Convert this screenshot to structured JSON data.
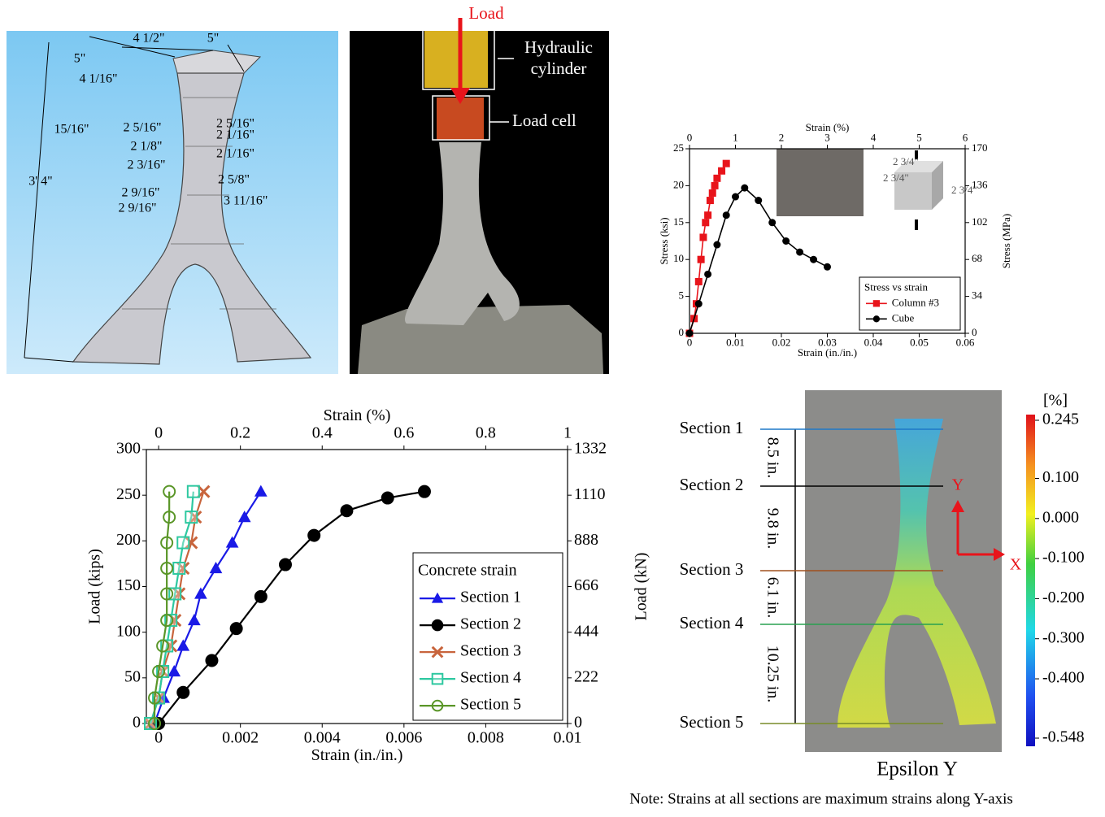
{
  "drawing": {
    "dimensions": [
      "4 1/2\"",
      "5\"",
      "5\"",
      "4 1/16\"",
      "15/16\"",
      "2 5/16\"",
      "2 5/16\"",
      "2 1/16\"",
      "2 1/8\"",
      "2 1/16\"",
      "2 3/16\"",
      "2 5/8\"",
      "2 9/16\"",
      "2 9/16\"",
      "3 11/16\"",
      "3' 4\""
    ]
  },
  "photo": {
    "load": "Load",
    "hydraulic_cylinder": "Hydraulic cylinder",
    "load_cell": "Load cell"
  },
  "chart_data": [
    {
      "type": "line",
      "x_label": "Strain (in./in.)",
      "x2_label": "Strain (%)",
      "y_label": "Stress (ksi)",
      "y2_label": "Stress (MPa)",
      "xlim": [
        0,
        0.06
      ],
      "xticks": [
        0,
        0.01,
        0.02,
        0.03,
        0.04,
        0.05,
        0.06
      ],
      "x2lim": [
        0,
        6
      ],
      "x2ticks": [
        0,
        1,
        2,
        3,
        4,
        5,
        6
      ],
      "ylim": [
        0,
        25
      ],
      "yticks": [
        0,
        5,
        10,
        15,
        20,
        25
      ],
      "y2lim": [
        0,
        170
      ],
      "y2ticks": [
        0,
        34,
        68,
        102,
        136,
        170
      ],
      "legend": "lower right",
      "legend_title": "Stress vs strain",
      "annotations": [
        "2 3/4\"",
        "2 3/4\"",
        "2 3/4\""
      ],
      "series": [
        {
          "name": "Column #3",
          "color": "#e8141b",
          "marker": "square",
          "marker_filled": true,
          "x": [
            0,
            0.001,
            0.0015,
            0.002,
            0.0025,
            0.003,
            0.0035,
            0.004,
            0.0045,
            0.005,
            0.0055,
            0.006,
            0.007,
            0.008
          ],
          "values": [
            0,
            2,
            4,
            7,
            10,
            13,
            15,
            16,
            18,
            19,
            20,
            21,
            22,
            23
          ]
        },
        {
          "name": "Cube",
          "color": "#000000",
          "marker": "circle",
          "marker_filled": true,
          "x": [
            0,
            0.002,
            0.004,
            0.006,
            0.008,
            0.01,
            0.012,
            0.015,
            0.018,
            0.021,
            0.024,
            0.027,
            0.03
          ],
          "values": [
            0,
            4,
            8,
            12,
            16,
            18.5,
            19.7,
            18,
            15,
            12.5,
            11,
            10,
            9
          ]
        }
      ]
    },
    {
      "type": "line",
      "x_label": "Strain (in./in.)",
      "x2_label": "Strain (%)",
      "y_label": "Load (kips)",
      "y2_label": "Load (kN)",
      "xlim": [
        -0.0003,
        0.01
      ],
      "xticks": [
        0,
        0.002,
        0.004,
        0.006,
        0.008,
        0.01
      ],
      "x2lim": [
        -0.03,
        1
      ],
      "x2ticks": [
        0,
        0.2,
        0.4,
        0.6,
        0.8,
        1
      ],
      "ylim": [
        0,
        300
      ],
      "yticks": [
        0,
        50,
        100,
        150,
        200,
        250,
        300
      ],
      "y2lim": [
        0,
        1332
      ],
      "y2ticks": [
        0,
        222,
        444,
        666,
        888,
        1110,
        1332
      ],
      "legend": "lower right",
      "legend_title": "Concrete strain",
      "series": [
        {
          "name": "Section 1",
          "color": "#1a1ae6",
          "marker": "triangle",
          "marker_filled": true,
          "x": [
            -0.0001,
            0.00012,
            0.00038,
            0.0006,
            0.00087,
            0.00103,
            0.0014,
            0.0018,
            0.0021,
            0.0025
          ],
          "values": [
            0,
            28,
            57,
            85,
            113,
            142,
            170,
            198,
            226,
            254
          ]
        },
        {
          "name": "Section 2",
          "color": "#000000",
          "marker": "circle",
          "marker_filled": true,
          "x": [
            0,
            0.0006,
            0.0013,
            0.0019,
            0.0025,
            0.0031,
            0.0038,
            0.0046,
            0.0056,
            0.0065
          ],
          "values": [
            0,
            34,
            69,
            104,
            139,
            174,
            206,
            233,
            247,
            254
          ]
        },
        {
          "name": "Section 3",
          "color": "#c8643c",
          "marker": "x",
          "marker_filled": false,
          "x": [
            -0.0002,
            0,
            0.0001,
            0.0003,
            0.0004,
            0.0005,
            0.0006,
            0.0008,
            0.0009,
            0.0011
          ],
          "values": [
            0,
            28,
            57,
            85,
            113,
            142,
            170,
            198,
            226,
            254
          ]
        },
        {
          "name": "Section 4",
          "color": "#2dc8a0",
          "marker": "square",
          "marker_filled": false,
          "x": [
            -0.0002,
            0,
            0.0001,
            0.0002,
            0.0003,
            0.0004,
            0.0005,
            0.0006,
            0.0008,
            0.00085
          ],
          "values": [
            0,
            28,
            57,
            85,
            113,
            142,
            170,
            198,
            226,
            254
          ]
        },
        {
          "name": "Section 5",
          "color": "#5a9628",
          "marker": "circle",
          "marker_filled": false,
          "x": [
            -0.0001,
            -0.0001,
            0,
            0.0001,
            0.0002,
            0.0002,
            0.0002,
            0.0002,
            0.00026,
            0.00026
          ],
          "values": [
            0,
            28,
            57,
            85,
            113,
            142,
            170,
            198,
            226,
            254
          ]
        }
      ]
    }
  ],
  "dic": {
    "sections": [
      "Section 1",
      "Section 2",
      "Section 3",
      "Section 4",
      "Section 5"
    ],
    "spacings": [
      "8.5 in.",
      "9.8 in.",
      "6.1 in.",
      "10.25 in."
    ],
    "axis_y": "Y",
    "axis_x": "X",
    "caption": "Epsilon Y",
    "note": "Note: Strains at all sections are maximum strains along Y-axis",
    "colorbar": {
      "unit": "[%]",
      "range": [
        -0.548,
        0.245
      ],
      "ticks": [
        {
          "value": 0.245,
          "label": "0.245"
        },
        {
          "value": 0.1,
          "label": "0.100"
        },
        {
          "value": 0,
          "label": "0.000"
        },
        {
          "value": -0.1,
          "label": "-0.100"
        },
        {
          "value": -0.2,
          "label": "-0.200"
        },
        {
          "value": -0.3,
          "label": "-0.300"
        },
        {
          "value": -0.4,
          "label": "-0.400"
        },
        {
          "value": -0.548,
          "label": "-0.548"
        }
      ]
    }
  }
}
